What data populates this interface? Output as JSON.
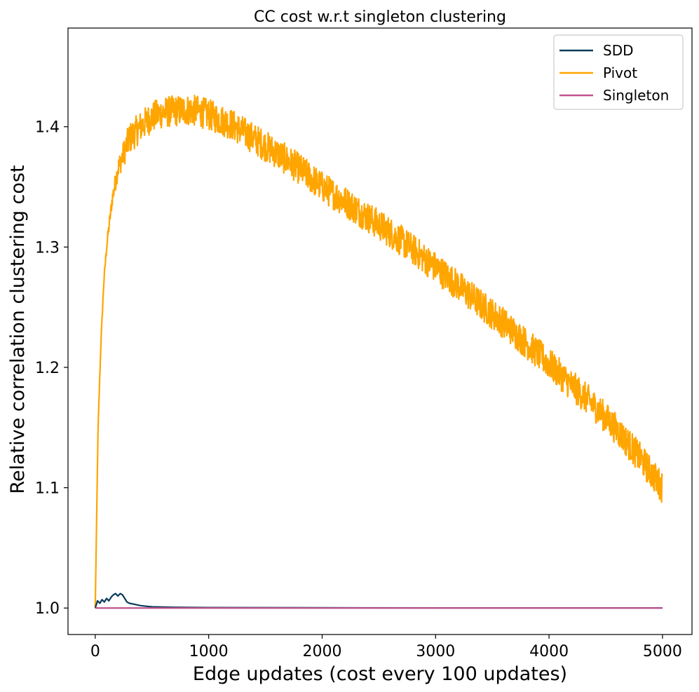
{
  "chart_data": {
    "type": "line",
    "title": "CC cost w.r.t singleton clustering",
    "xlabel": "Edge updates (cost every 100 updates)",
    "ylabel": "Relative correlation clustering cost",
    "xlim": [
      -240,
      5260
    ],
    "ylim": [
      0.978,
      1.482
    ],
    "xticks": [
      0,
      1000,
      2000,
      3000,
      4000,
      5000
    ],
    "xtick_labels": [
      "0",
      "1000",
      "2000",
      "3000",
      "4000",
      "5000"
    ],
    "yticks": [
      1.0,
      1.1,
      1.2,
      1.3,
      1.4
    ],
    "ytick_labels": [
      "1.0",
      "1.1",
      "1.2",
      "1.3",
      "1.4"
    ],
    "grid": false,
    "legend_position": "top-right",
    "series": [
      {
        "name": "SDD",
        "color": "#0b3c5d",
        "x": [
          0,
          20,
          40,
          60,
          80,
          100,
          120,
          140,
          160,
          180,
          200,
          220,
          240,
          260,
          280,
          300,
          350,
          400,
          450,
          500,
          600,
          700,
          800,
          1000,
          1500,
          2000,
          3000,
          4000,
          5000
        ],
        "y": [
          1.0,
          1.006,
          1.004,
          1.007,
          1.005,
          1.008,
          1.006,
          1.009,
          1.011,
          1.012,
          1.01,
          1.012,
          1.011,
          1.008,
          1.005,
          1.004,
          1.003,
          1.002,
          1.0015,
          1.001,
          1.0008,
          1.0006,
          1.0005,
          1.0004,
          1.0003,
          1.0002,
          1.0001,
          1.0001,
          1.0001
        ]
      },
      {
        "name": "Pivot",
        "color": "#ffa500",
        "noise_amplitude": 0.013,
        "x": [
          0,
          10,
          25,
          50,
          75,
          100,
          150,
          200,
          300,
          400,
          500,
          600,
          700,
          800,
          900,
          1000,
          1200,
          1400,
          1600,
          1800,
          2000,
          2200,
          2400,
          2600,
          2800,
          3000,
          3200,
          3400,
          3600,
          3800,
          4000,
          4200,
          4400,
          4600,
          4800,
          5000
        ],
        "y": [
          1.0,
          1.06,
          1.15,
          1.22,
          1.27,
          1.3,
          1.34,
          1.365,
          1.39,
          1.4,
          1.408,
          1.412,
          1.413,
          1.414,
          1.413,
          1.41,
          1.402,
          1.39,
          1.378,
          1.365,
          1.35,
          1.338,
          1.325,
          1.312,
          1.298,
          1.283,
          1.268,
          1.252,
          1.237,
          1.22,
          1.203,
          1.185,
          1.168,
          1.148,
          1.125,
          1.1
        ]
      },
      {
        "name": "Singleton",
        "color": "#c2538d",
        "x": [
          0,
          5000
        ],
        "y": [
          1.0,
          1.0
        ]
      }
    ]
  }
}
